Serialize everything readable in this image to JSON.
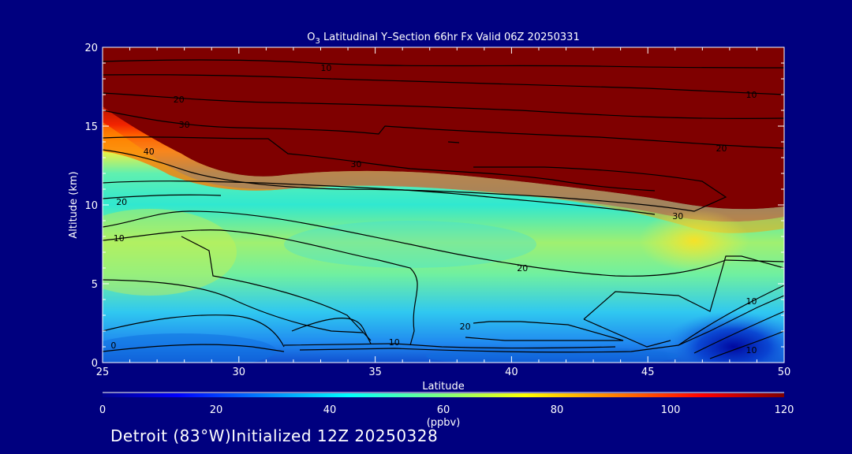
{
  "chart_data": {
    "type": "heatmap",
    "title": "O3 Latitudinal Y–Section 66hr  Fx Valid 06Z 20250331",
    "title_main": "O",
    "title_sub": "3",
    "title_rest": " Latitudinal Y–Section 66hr  Fx Valid 06Z 20250331",
    "xlabel": "Latitude",
    "ylabel": "Altitude (km)",
    "xlim": [
      25,
      50
    ],
    "ylim": [
      0,
      20
    ],
    "xticks": [
      25,
      30,
      35,
      40,
      45,
      50
    ],
    "yticks": [
      0,
      5,
      10,
      15,
      20
    ],
    "colorbar": {
      "label": "(ppbv)",
      "min": 0,
      "max": 120,
      "ticks": [
        0,
        20,
        40,
        60,
        80,
        100,
        120
      ]
    },
    "contour_labels": [
      {
        "text": "10",
        "lat": 33.2,
        "alt": 18.7
      },
      {
        "text": "10",
        "lat": 48.8,
        "alt": 17.0
      },
      {
        "text": "20",
        "lat": 27.8,
        "alt": 16.7
      },
      {
        "text": "30",
        "lat": 28.0,
        "alt": 15.1
      },
      {
        "text": "20",
        "lat": 47.7,
        "alt": 13.6
      },
      {
        "text": "40",
        "lat": 26.7,
        "alt": 13.4
      },
      {
        "text": "30",
        "lat": 34.3,
        "alt": 12.6
      },
      {
        "text": "20",
        "lat": 25.7,
        "alt": 10.2
      },
      {
        "text": "30",
        "lat": 46.1,
        "alt": 9.3
      },
      {
        "text": "10",
        "lat": 25.6,
        "alt": 7.9
      },
      {
        "text": "20",
        "lat": 40.4,
        "alt": 6.0
      },
      {
        "text": "10",
        "lat": 48.8,
        "alt": 3.9
      },
      {
        "text": "20",
        "lat": 38.3,
        "alt": 2.3
      },
      {
        "text": "10",
        "lat": 35.7,
        "alt": 1.3
      },
      {
        "text": "0",
        "lat": 25.4,
        "alt": 1.1
      },
      {
        "text": "10",
        "lat": 48.8,
        "alt": 0.8
      }
    ]
  },
  "footer": "Detroit (83°W)Initialized 12Z 20250328"
}
